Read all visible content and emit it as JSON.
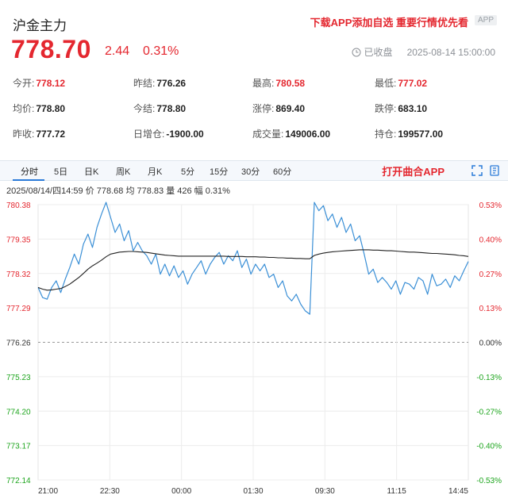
{
  "header": {
    "title": "沪金主力",
    "promo": "下载APP添加自选 重要行情优先看",
    "app_badge": "APP"
  },
  "quote": {
    "price": "778.70",
    "change": "2.44",
    "change_pct": "0.31%",
    "status_text": "已收盘",
    "timestamp": "2025-08-14 15:00:00"
  },
  "stats": [
    {
      "label": "今开:",
      "value": "778.12",
      "color": "red"
    },
    {
      "label": "昨结:",
      "value": "776.26",
      "color": "normal"
    },
    {
      "label": "最高:",
      "value": "780.58",
      "color": "red"
    },
    {
      "label": "最低:",
      "value": "777.02",
      "color": "red"
    },
    {
      "label": "均价:",
      "value": "778.80",
      "color": "normal"
    },
    {
      "label": "今结:",
      "value": "778.80",
      "color": "normal"
    },
    {
      "label": "涨停:",
      "value": "869.40",
      "color": "normal"
    },
    {
      "label": "跌停:",
      "value": "683.10",
      "color": "normal"
    },
    {
      "label": "昨收:",
      "value": "777.72",
      "color": "normal"
    },
    {
      "label": "日增仓:",
      "value": "-1900.00",
      "color": "normal"
    },
    {
      "label": "成交量:",
      "value": "149006.00",
      "color": "normal"
    },
    {
      "label": "持仓:",
      "value": "199577.00",
      "color": "normal"
    }
  ],
  "tabs": [
    "分时",
    "5日",
    "日K",
    "周K",
    "月K",
    "5分",
    "15分",
    "30分",
    "60分"
  ],
  "active_tab": "分时",
  "open_app_label": "打开曲合APP",
  "summary_line": "2025/08/14/四14:59  价 778.68  均 778.83  量 426  幅 0.31%",
  "colors": {
    "up": "#e4272f",
    "down": "#1ea51e",
    "price_line": "#3a8fd6",
    "avg_line": "#222222",
    "tab_accent": "#2a7ad8"
  },
  "chart_data": {
    "type": "line",
    "y_left_ticks": [
      "780.38",
      "779.35",
      "778.32",
      "777.29",
      "776.26",
      "775.23",
      "774.20",
      "773.17",
      "772.14"
    ],
    "y_right_ticks": [
      "0.53%",
      "0.40%",
      "0.27%",
      "0.13%",
      "0.00%",
      "-0.13%",
      "-0.27%",
      "-0.40%",
      "-0.53%"
    ],
    "x_ticks": [
      "21:00",
      "22:30",
      "00:00",
      "01:30",
      "09:30",
      "11:15",
      "14:45"
    ],
    "ylim": [
      772.14,
      780.38
    ],
    "prev_settle": 776.26,
    "grid": true,
    "series": [
      {
        "values": [
          777.9,
          777.6,
          777.55,
          777.9,
          778.1,
          777.75,
          778.15,
          778.5,
          778.9,
          778.6,
          779.2,
          779.5,
          779.1,
          779.7,
          780.1,
          780.45,
          780.0,
          779.55,
          779.8,
          779.3,
          779.6,
          779.0,
          779.25,
          779.0,
          778.85,
          778.6,
          778.9,
          778.3,
          778.6,
          778.25,
          778.55,
          778.2,
          778.4,
          778.0,
          778.3,
          778.5,
          778.7,
          778.3,
          778.6,
          778.8,
          778.95,
          778.6,
          778.85,
          778.7,
          779.0,
          778.5,
          778.75,
          778.3,
          778.6,
          778.4,
          778.6,
          778.2,
          778.3,
          777.9,
          778.1,
          777.65,
          777.5,
          777.7,
          777.4,
          777.2,
          777.1,
          780.45,
          780.2,
          780.35,
          779.9,
          780.1,
          779.7,
          780.0,
          779.55,
          779.8,
          779.3,
          779.45,
          778.9,
          778.3,
          778.45,
          778.05,
          778.2,
          778.05,
          777.85,
          778.1,
          777.7,
          778.05,
          778.0,
          777.85,
          778.2,
          778.1,
          777.7,
          778.3,
          777.95,
          778.0,
          778.15,
          777.9,
          778.25,
          778.1,
          778.4,
          778.68
        ]
      },
      {
        "values": [
          777.9,
          777.85,
          777.82,
          777.83,
          777.85,
          777.87,
          777.93,
          778.0,
          778.1,
          778.2,
          778.32,
          778.45,
          778.55,
          778.63,
          778.72,
          778.82,
          778.9,
          778.93,
          778.96,
          778.97,
          778.98,
          778.98,
          778.97,
          778.96,
          778.95,
          778.93,
          778.91,
          778.89,
          778.87,
          778.86,
          778.85,
          778.84,
          778.84,
          778.84,
          778.84,
          778.84,
          778.84,
          778.84,
          778.84,
          778.84,
          778.84,
          778.84,
          778.83,
          778.83,
          778.83,
          778.83,
          778.82,
          778.82,
          778.82,
          778.81,
          778.81,
          778.8,
          778.8,
          778.79,
          778.79,
          778.78,
          778.78,
          778.77,
          778.77,
          778.76,
          778.76,
          778.86,
          778.9,
          778.93,
          778.95,
          778.97,
          778.98,
          778.99,
          779.0,
          779.01,
          779.02,
          779.03,
          779.03,
          779.03,
          779.02,
          779.02,
          779.01,
          779.0,
          779.0,
          778.99,
          778.98,
          778.97,
          778.96,
          778.96,
          778.95,
          778.94,
          778.93,
          778.92,
          778.92,
          778.91,
          778.9,
          778.89,
          778.88,
          778.86,
          778.85,
          778.83
        ]
      }
    ]
  }
}
